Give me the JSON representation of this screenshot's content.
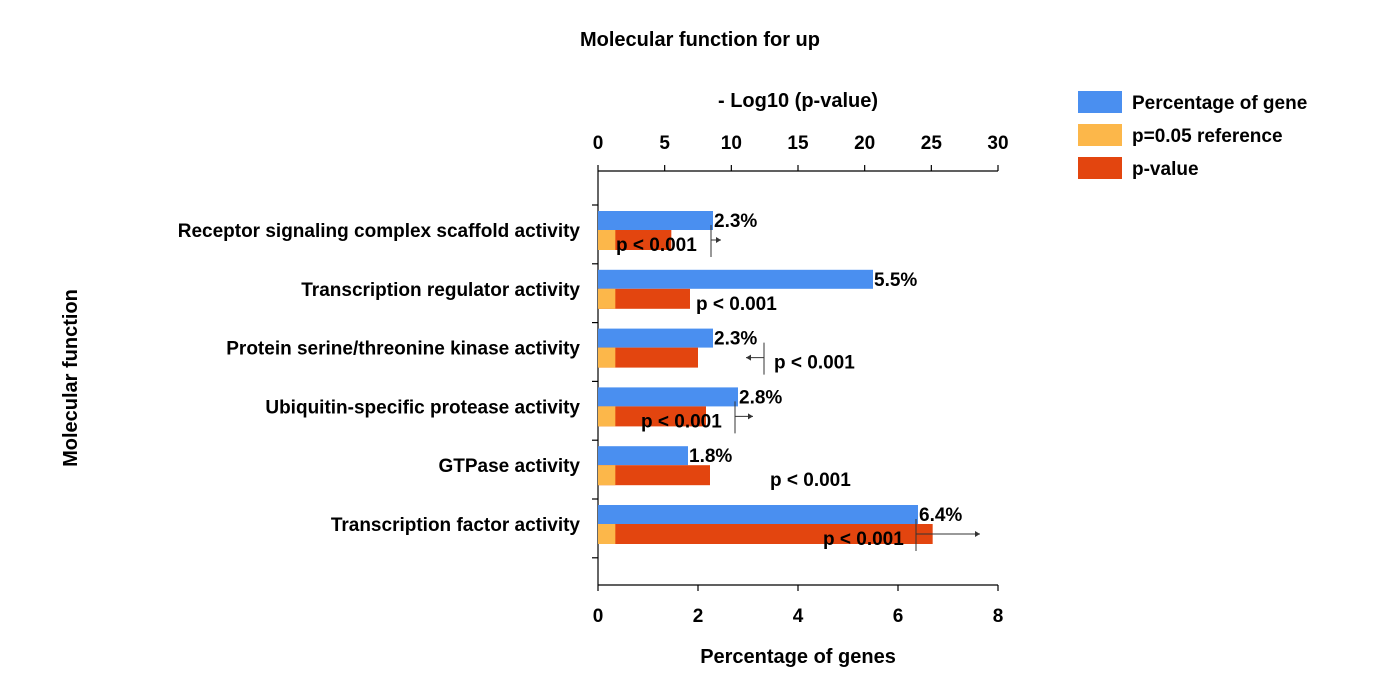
{
  "colors": {
    "percentage": "#4a8ff0",
    "reference": "#fcb74a",
    "pvalue": "#e3450f",
    "axis": "#000000"
  },
  "chart_data": {
    "type": "bar",
    "orientation": "horizontal",
    "title": "Molecular function for up",
    "ylabel": "Molecular function",
    "xlabel_bottom": "Percentage of genes",
    "xlabel_top": "- Log10 (p-value)",
    "xlim_bottom": [
      0,
      8
    ],
    "xlim_top": [
      0,
      30
    ],
    "xticks_bottom": [
      "0",
      "2",
      "4",
      "6",
      "8"
    ],
    "xticks_top": [
      "0",
      "5",
      "10",
      "15",
      "20",
      "25",
      "30"
    ],
    "grid": false,
    "legend_position": "top-right",
    "categories": [
      "Receptor signaling complex scaffold activity",
      "Transcription regulator activity",
      "Protein serine/threonine kinase activity",
      "Ubiquitin-specific protease activity",
      "GTPase activity",
      "Transcription factor activity"
    ],
    "series": [
      {
        "name": "Percentage of gene",
        "axis": "bottom",
        "values": [
          2.3,
          5.5,
          2.3,
          2.8,
          1.8,
          6.4
        ]
      },
      {
        "name": "p=0.05 reference",
        "axis": "top",
        "values": [
          1.3,
          1.3,
          1.3,
          1.3,
          1.3,
          1.3
        ]
      },
      {
        "name": "p-value",
        "axis": "top",
        "values": [
          5.5,
          6.9,
          7.5,
          8.1,
          8.4,
          25.1
        ]
      }
    ],
    "percent_labels": [
      "2.3%",
      "5.5%",
      "2.3%",
      "2.8%",
      "1.8%",
      "6.4%"
    ],
    "pvalue_labels": [
      "p < 0.001",
      "p < 0.001",
      "p < 0.001",
      "p < 0.001",
      "p < 0.001",
      "p < 0.001"
    ]
  }
}
